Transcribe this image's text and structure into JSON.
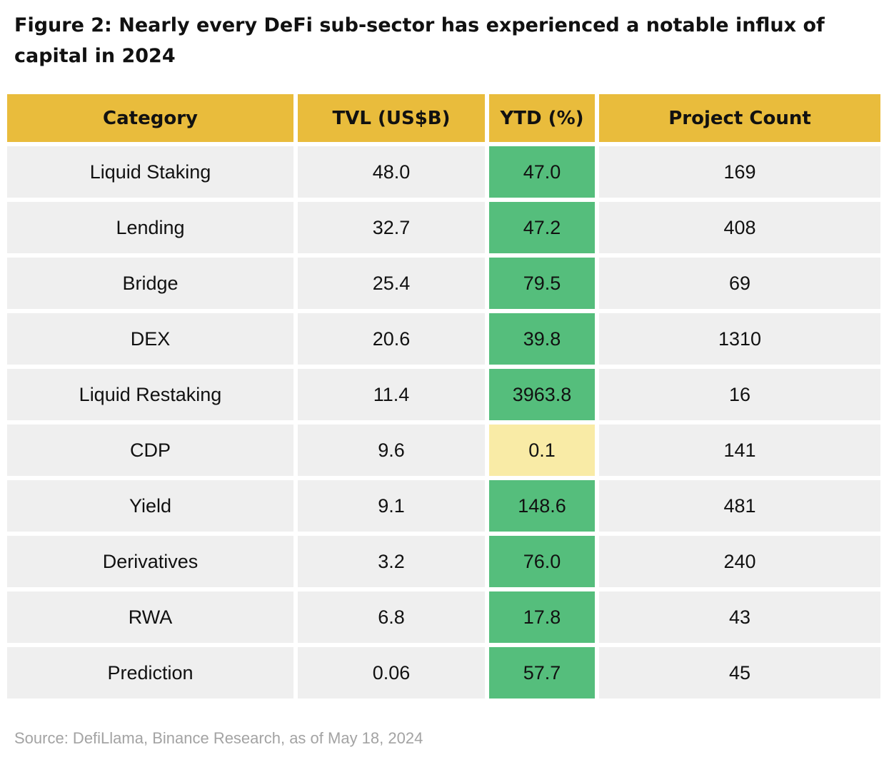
{
  "title": "Figure 2: Nearly every DeFi sub-sector has experienced a notable influx of capital in 2024",
  "source": "Source: DefiLlama, Binance Research, as of May 18, 2024",
  "colors": {
    "header_bg": "#e9bc3c",
    "row_bg": "#efefef",
    "ytd_positive": "#55be7c",
    "ytd_neutral": "#f9eba6"
  },
  "chart_data": {
    "type": "table",
    "title": "Figure 2: Nearly every DeFi sub-sector has experienced a notable influx of capital in 2024",
    "columns": [
      "Category",
      "TVL (US$B)",
      "YTD (%)",
      "Project Count"
    ],
    "rows": [
      {
        "category": "Liquid Staking",
        "tvl": "48.0",
        "ytd": "47.0",
        "count": "169",
        "ytd_style": "positive"
      },
      {
        "category": "Lending",
        "tvl": "32.7",
        "ytd": "47.2",
        "count": "408",
        "ytd_style": "positive"
      },
      {
        "category": "Bridge",
        "tvl": "25.4",
        "ytd": "79.5",
        "count": "69",
        "ytd_style": "positive"
      },
      {
        "category": "DEX",
        "tvl": "20.6",
        "ytd": "39.8",
        "count": "1310",
        "ytd_style": "positive"
      },
      {
        "category": "Liquid Restaking",
        "tvl": "11.4",
        "ytd": "3963.8",
        "count": "16",
        "ytd_style": "positive"
      },
      {
        "category": "CDP",
        "tvl": "9.6",
        "ytd": "0.1",
        "count": "141",
        "ytd_style": "neutral"
      },
      {
        "category": "Yield",
        "tvl": "9.1",
        "ytd": "148.6",
        "count": "481",
        "ytd_style": "positive"
      },
      {
        "category": "Derivatives",
        "tvl": "3.2",
        "ytd": "76.0",
        "count": "240",
        "ytd_style": "positive"
      },
      {
        "category": "RWA",
        "tvl": "6.8",
        "ytd": "17.8",
        "count": "43",
        "ytd_style": "positive"
      },
      {
        "category": "Prediction",
        "tvl": "0.06",
        "ytd": "57.7",
        "count": "45",
        "ytd_style": "positive"
      }
    ]
  }
}
